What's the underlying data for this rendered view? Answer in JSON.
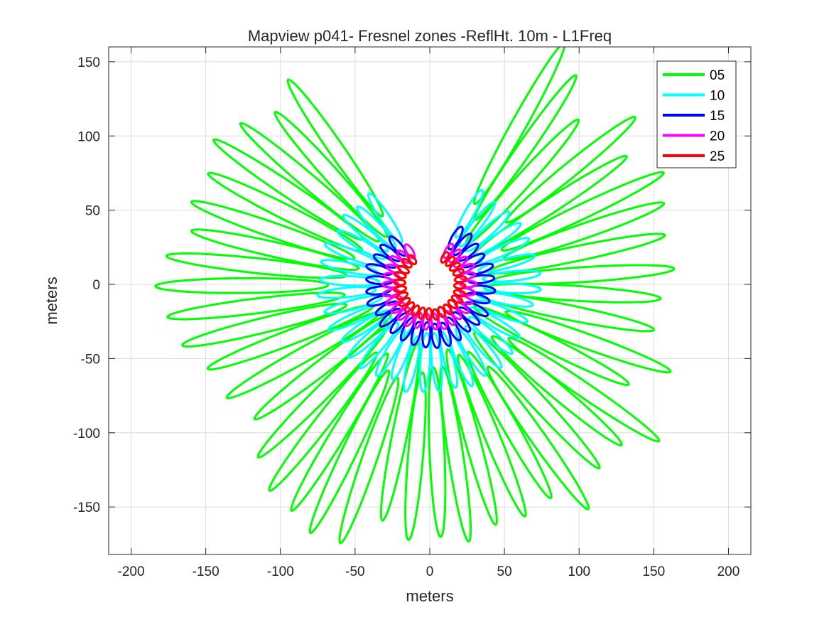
{
  "chart_data": {
    "type": "line",
    "title": "Mapview p041- Fresnel zones -ReflHt. 10m - L1Freq",
    "xlabel": "meters",
    "ylabel": "meters",
    "xlim": [
      -215,
      215
    ],
    "ylim": [
      -182,
      160
    ],
    "xticks": [
      -200,
      -150,
      -100,
      -50,
      0,
      50,
      100,
      150,
      200
    ],
    "yticks": [
      -150,
      -100,
      -50,
      0,
      50,
      100,
      150
    ],
    "xtick_labels": [
      "-200",
      "-150",
      "-100",
      "-50",
      "0",
      "50",
      "100",
      "150",
      "200"
    ],
    "ytick_labels": [
      "-150",
      "-100",
      "-50",
      "0",
      "50",
      "100",
      "150"
    ],
    "grid": true,
    "legend_position": "top-right",
    "origin_marker": "+",
    "azimuth_gap_deg": [
      -28,
      28
    ],
    "series": [
      {
        "name": "05",
        "color": "#00ff00",
        "elevation_deg": 5,
        "ellipse_center_range_m": [
          90,
          130
        ],
        "ellipse_semi_major_m": [
          55,
          62
        ],
        "ellipse_semi_minor_m": 5
      },
      {
        "name": "10",
        "color": "#00ffff",
        "elevation_deg": 10,
        "ellipse_center_range_m": [
          50,
          56
        ],
        "ellipse_semi_major_m": [
          18,
          20
        ],
        "ellipse_semi_minor_m": 3.2
      },
      {
        "name": "15",
        "color": "#0000ff",
        "elevation_deg": 15,
        "ellipse_center_range_m": [
          33,
          36
        ],
        "ellipse_semi_major_m": [
          8,
          9
        ],
        "ellipse_semi_minor_m": 2.6
      },
      {
        "name": "20",
        "color": "#ff00ff",
        "elevation_deg": 20,
        "ellipse_center_range_m": [
          25,
          27
        ],
        "ellipse_semi_major_m": [
          5,
          5.5
        ],
        "ellipse_semi_minor_m": 2.1
      },
      {
        "name": "25",
        "color": "#ff0000",
        "elevation_deg": 25,
        "ellipse_center_range_m": [
          20,
          21
        ],
        "ellipse_semi_major_m": [
          3.5,
          4
        ],
        "ellipse_semi_minor_m": 1.8
      }
    ]
  }
}
